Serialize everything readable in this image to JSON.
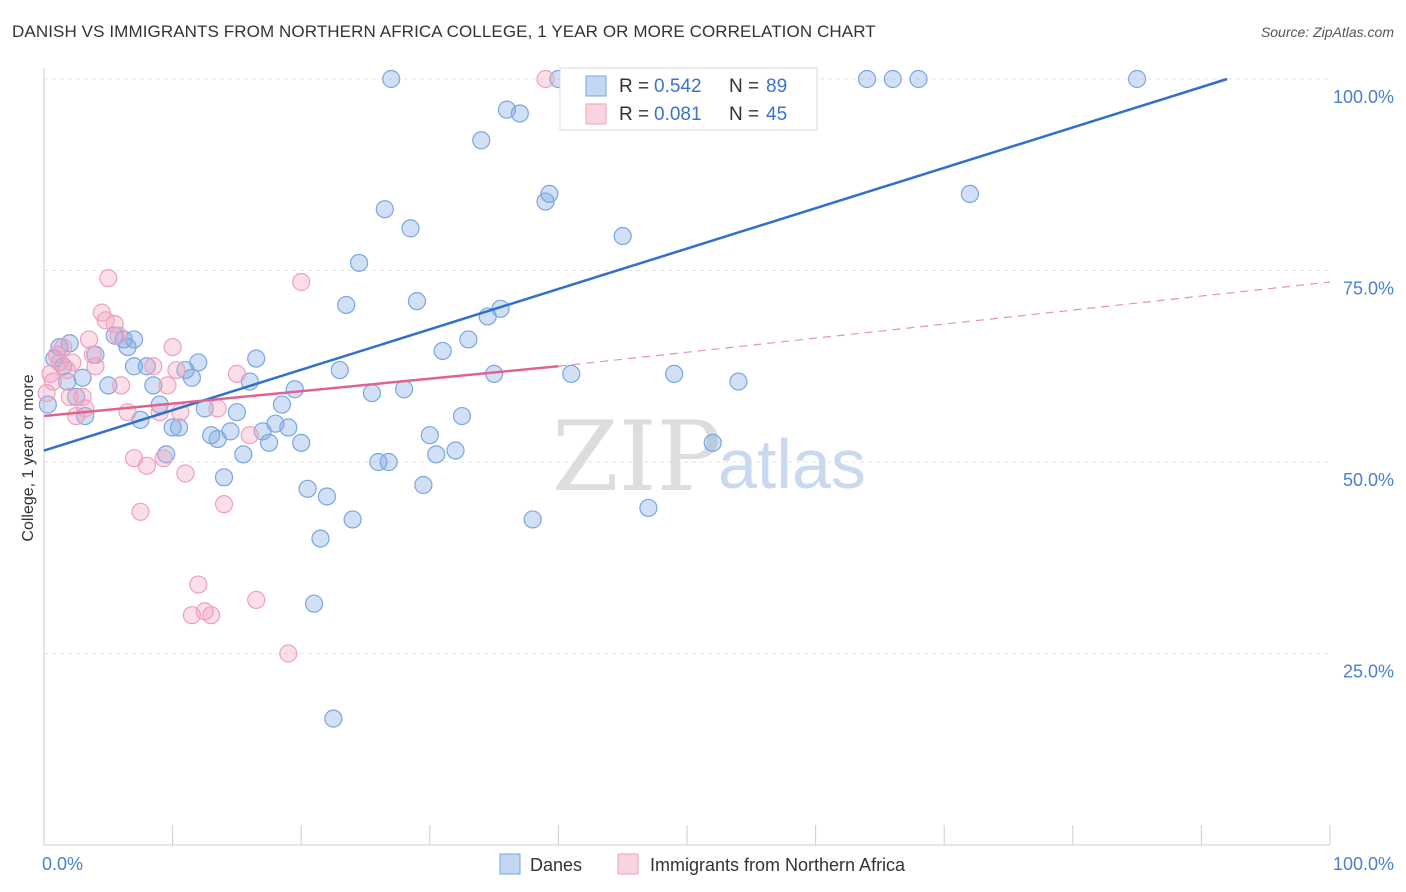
{
  "chart_data": {
    "type": "scatter",
    "title": "DANISH VS IMMIGRANTS FROM NORTHERN AFRICA COLLEGE, 1 YEAR OR MORE CORRELATION CHART",
    "source": "Source: ZipAtlas.com",
    "ylabel": "College, 1 year or more",
    "xlim": [
      0,
      100
    ],
    "ylim": [
      0,
      100
    ],
    "x_tick_labels": [
      {
        "value": 0,
        "label": "0.0%"
      },
      {
        "value": 100,
        "label": "100.0%"
      }
    ],
    "y_tick_labels": [
      {
        "value": 100,
        "label": "100.0%"
      },
      {
        "value": 75,
        "label": "75.0%"
      },
      {
        "value": 50,
        "label": "50.0%"
      },
      {
        "value": 25,
        "label": "25.0%"
      }
    ],
    "grid": true,
    "legend_position": "top-center",
    "watermark": {
      "zip": "ZIP",
      "atlas": "atlas"
    },
    "series": [
      {
        "name": "Danes",
        "color": "#7aa6e3",
        "line_color": "#2f6fce",
        "legend": {
          "r_label": "R = ",
          "r_value": "0.542",
          "n_label": "N = ",
          "n_value": "89"
        },
        "trend": {
          "x0": 0,
          "y0": 51.5,
          "x1": 92,
          "y1": 100,
          "style": "solid"
        },
        "points": [
          [
            0.3,
            57.5
          ],
          [
            0.8,
            63.5
          ],
          [
            1.2,
            65
          ],
          [
            1.5,
            62.5
          ],
          [
            1.8,
            60.5
          ],
          [
            2,
            65.5
          ],
          [
            2.5,
            58.5
          ],
          [
            3,
            61
          ],
          [
            3.2,
            56
          ],
          [
            4,
            64
          ],
          [
            5,
            60
          ],
          [
            5.5,
            66.5
          ],
          [
            6.2,
            66
          ],
          [
            6.5,
            65
          ],
          [
            7,
            62.5
          ],
          [
            7,
            66
          ],
          [
            7.5,
            55.5
          ],
          [
            8,
            62.5
          ],
          [
            8.5,
            60
          ],
          [
            9,
            57.5
          ],
          [
            9.5,
            51
          ],
          [
            10,
            54.5
          ],
          [
            10.5,
            54.5
          ],
          [
            11,
            62
          ],
          [
            11.5,
            61
          ],
          [
            12,
            63
          ],
          [
            12.5,
            57
          ],
          [
            13,
            53.5
          ],
          [
            13.5,
            53
          ],
          [
            14,
            48
          ],
          [
            14.5,
            54
          ],
          [
            15,
            56.5
          ],
          [
            15.5,
            51
          ],
          [
            16,
            60.5
          ],
          [
            16.5,
            63.5
          ],
          [
            17,
            54
          ],
          [
            17.5,
            52.5
          ],
          [
            18,
            55
          ],
          [
            18.5,
            57.5
          ],
          [
            19,
            54.5
          ],
          [
            19.5,
            59.5
          ],
          [
            20,
            52.5
          ],
          [
            20.5,
            46.5
          ],
          [
            21,
            31.5
          ],
          [
            21.5,
            40
          ],
          [
            22,
            45.5
          ],
          [
            22.5,
            16.5
          ],
          [
            23,
            62
          ],
          [
            23.5,
            70.5
          ],
          [
            24,
            42.5
          ],
          [
            24.5,
            76
          ],
          [
            25.5,
            59
          ],
          [
            26,
            50
          ],
          [
            26.5,
            83
          ],
          [
            26.8,
            50
          ],
          [
            27,
            100
          ],
          [
            28,
            59.5
          ],
          [
            28.5,
            80.5
          ],
          [
            29,
            71
          ],
          [
            29.5,
            47
          ],
          [
            30,
            53.5
          ],
          [
            30.5,
            51
          ],
          [
            31,
            64.5
          ],
          [
            32,
            51.5
          ],
          [
            32.5,
            56
          ],
          [
            33,
            66
          ],
          [
            34,
            92
          ],
          [
            35,
            61.5
          ],
          [
            34.5,
            69
          ],
          [
            35.5,
            70
          ],
          [
            36,
            96
          ],
          [
            37,
            95.5
          ],
          [
            38,
            42.5
          ],
          [
            39,
            84
          ],
          [
            39.3,
            85
          ],
          [
            40,
            100
          ],
          [
            41,
            61.5
          ],
          [
            42,
            100
          ],
          [
            45,
            79.5
          ],
          [
            47,
            44
          ],
          [
            49,
            61.5
          ],
          [
            52,
            52.5
          ],
          [
            54,
            60.5
          ],
          [
            58,
            100
          ],
          [
            64,
            100
          ],
          [
            66,
            100
          ],
          [
            68,
            100
          ],
          [
            72,
            85
          ],
          [
            85,
            100
          ]
        ]
      },
      {
        "name": "Immigrants from Northern Africa",
        "color": "#f0a0bd",
        "line_color": "#e0638f",
        "legend": {
          "r_label": "R = ",
          "r_value": "0.081",
          "n_label": "N = ",
          "n_value": "45"
        },
        "trend": {
          "x0": 0,
          "y0": 56,
          "x1": 40,
          "y1": 62.5,
          "style": "solid",
          "extension": {
            "x1": 100,
            "y1": 73.5,
            "style": "dashed"
          }
        },
        "points": [
          [
            0.2,
            59
          ],
          [
            0.5,
            61.5
          ],
          [
            0.7,
            60.5
          ],
          [
            1,
            64
          ],
          [
            1.2,
            63
          ],
          [
            1.5,
            65
          ],
          [
            1.8,
            62
          ],
          [
            2,
            58.5
          ],
          [
            2.2,
            63
          ],
          [
            2.5,
            56
          ],
          [
            3,
            58.5
          ],
          [
            3.2,
            57
          ],
          [
            3.5,
            66
          ],
          [
            3.8,
            64
          ],
          [
            4,
            62.5
          ],
          [
            4.5,
            69.5
          ],
          [
            5,
            74
          ],
          [
            5.5,
            68
          ],
          [
            5.8,
            66.5
          ],
          [
            6,
            60
          ],
          [
            6.5,
            56.5
          ],
          [
            7,
            50.5
          ],
          [
            7.5,
            43.5
          ],
          [
            8,
            49.5
          ],
          [
            8.5,
            62.5
          ],
          [
            9,
            56.5
          ],
          [
            9.3,
            50.5
          ],
          [
            9.6,
            60
          ],
          [
            10,
            65
          ],
          [
            10.3,
            62
          ],
          [
            10.6,
            56.5
          ],
          [
            11,
            48.5
          ],
          [
            11.5,
            30
          ],
          [
            12,
            34
          ],
          [
            12.5,
            30.5
          ],
          [
            13,
            30
          ],
          [
            13.5,
            57
          ],
          [
            14,
            44.5
          ],
          [
            15,
            61.5
          ],
          [
            16,
            53.5
          ],
          [
            16.5,
            32
          ],
          [
            19,
            25
          ],
          [
            20,
            73.5
          ],
          [
            39,
            100
          ],
          [
            4.8,
            68.5
          ]
        ]
      }
    ],
    "bottom_legend": [
      "Danes",
      "Immigrants from Northern Africa"
    ]
  }
}
